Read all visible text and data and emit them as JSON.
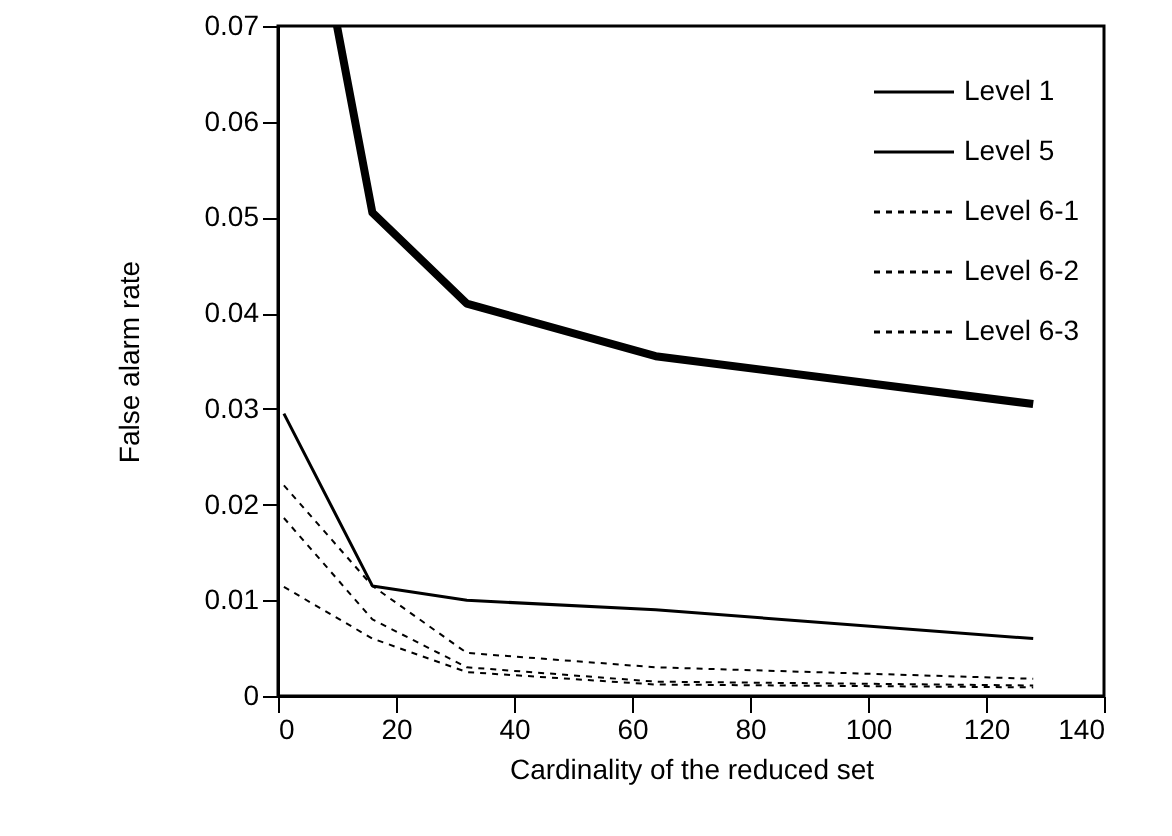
{
  "chart_data": {
    "type": "line",
    "xlabel": "Cardinality of the reduced set",
    "ylabel": "False alarm rate",
    "xlim": [
      0,
      140
    ],
    "xticks": [
      0,
      20,
      40,
      60,
      80,
      100,
      120,
      140
    ],
    "ylim": [
      0,
      0.07
    ],
    "yticks": [
      {
        "value": 0,
        "label": "0"
      },
      0.01,
      0.02,
      0.03,
      0.04,
      0.05,
      0.06,
      0.07
    ],
    "grid": false,
    "legend": "top right",
    "marker": "none",
    "series": [
      {
        "name": "Level 1",
        "color": "#000000",
        "line_style": "solid",
        "x": [
          10,
          16,
          32,
          64,
          128
        ],
        "values": [
          0.07,
          0.0505,
          0.041,
          0.0355,
          0.0305
        ]
      },
      {
        "name": "Level 5",
        "color": "#000000",
        "line_style": "solid",
        "x": [
          1,
          16,
          32,
          64,
          128
        ],
        "values": [
          0.0295,
          0.0115,
          0.01,
          0.009,
          0.006
        ]
      },
      {
        "name": "Level 6-1",
        "color": "#000000",
        "line_style": "dashed",
        "x": [
          1,
          16,
          32,
          64,
          128
        ],
        "values": [
          0.022,
          0.0115,
          0.0045,
          0.003,
          0.0018
        ]
      },
      {
        "name": "Level 6-2",
        "color": "#000000",
        "line_style": "dashed",
        "x": [
          1,
          16,
          32,
          64,
          128
        ],
        "values": [
          0.0186,
          0.008,
          0.003,
          0.0015,
          0.0011
        ]
      },
      {
        "name": "Level 6-3",
        "color": "#000000",
        "line_style": "dashed",
        "x": [
          1,
          16,
          32,
          64,
          128
        ],
        "values": [
          0.0114,
          0.006,
          0.0025,
          0.0012,
          0.0009
        ]
      }
    ]
  }
}
